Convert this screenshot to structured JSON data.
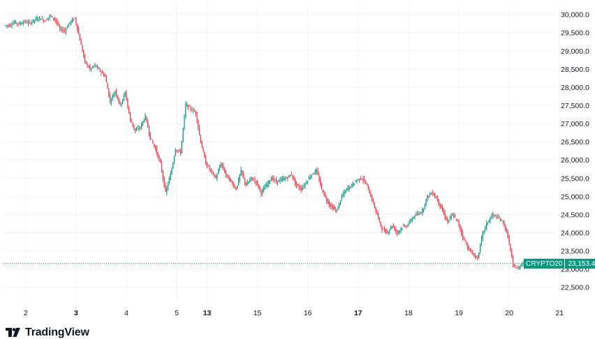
{
  "branding": {
    "logo_text": "TradingView",
    "logo_icon": "tradingview-logo-icon"
  },
  "colors": {
    "up": "#089981",
    "down": "#f23645",
    "grid": "#f0f3fa",
    "axis_text": "#131722",
    "last_price_line": "#089981"
  },
  "last_price": {
    "symbol": "CRYPTO20",
    "value": "23,153.4",
    "value_num": 23153.4
  },
  "chart_data": {
    "type": "candlestick",
    "y_axis": {
      "side": "right",
      "range": [
        22150,
        30300
      ],
      "ticks": [
        22500,
        23000,
        23500,
        24000,
        24500,
        25000,
        25500,
        26000,
        26500,
        27000,
        27500,
        28000,
        28500,
        29000,
        29500,
        30000
      ],
      "tick_labels": [
        "22,500.0",
        "23,000.0",
        "23,500.0",
        "24,000.0",
        "24,500.0",
        "25,000.0",
        "25,500.0",
        "26,000.0",
        "26,500.0",
        "27,000.0",
        "27,500.0",
        "28,000.0",
        "28,500.0",
        "29,000.0",
        "29,500.0",
        "30,000.0"
      ]
    },
    "x_axis": {
      "tick_labels": [
        {
          "label": "2",
          "bold": false
        },
        {
          "label": "3",
          "bold": true
        },
        {
          "label": "4",
          "bold": false
        },
        {
          "label": "5",
          "bold": false
        },
        {
          "label": "13",
          "bold": true
        },
        {
          "label": "15",
          "bold": false
        },
        {
          "label": "16",
          "bold": false
        },
        {
          "label": "17",
          "bold": true
        },
        {
          "label": "18",
          "bold": false
        },
        {
          "label": "19",
          "bold": false
        },
        {
          "label": "20",
          "bold": false
        },
        {
          "label": "21",
          "bold": false
        }
      ],
      "tick_session_index": [
        4,
        14,
        24,
        34,
        40,
        50,
        60,
        70,
        80,
        90,
        100,
        110
      ]
    },
    "price_path": [
      29700,
      29780,
      29740,
      29800,
      29760,
      29850,
      29900,
      29820,
      29960,
      29880,
      29600,
      29550,
      29780,
      29900,
      29300,
      28700,
      28500,
      28600,
      28450,
      28300,
      27600,
      27900,
      27500,
      27850,
      27100,
      26800,
      26900,
      27200,
      26600,
      26300,
      25900,
      25100,
      25600,
      26300,
      26200,
      27520,
      27400,
      27300,
      26500,
      25900,
      25700,
      25500,
      25900,
      25600,
      25400,
      25200,
      25700,
      25300,
      25500,
      25400,
      25100,
      25300,
      25500,
      25400,
      25450,
      25500,
      25600,
      25300,
      25200,
      25400,
      25600,
      25700,
      25200,
      24900,
      24700,
      24600,
      25000,
      25200,
      25300,
      25450,
      25500,
      25300,
      24900,
      24500,
      24100,
      24000,
      24200,
      24000,
      24150,
      24200,
      24400,
      24500,
      24600,
      25000,
      25100,
      24900,
      24600,
      24300,
      24500,
      24300,
      23900,
      23600,
      23400,
      23300,
      24000,
      24300,
      24500,
      24400,
      24300,
      23900,
      23100,
      23000,
      23200,
      23153.4
    ]
  }
}
